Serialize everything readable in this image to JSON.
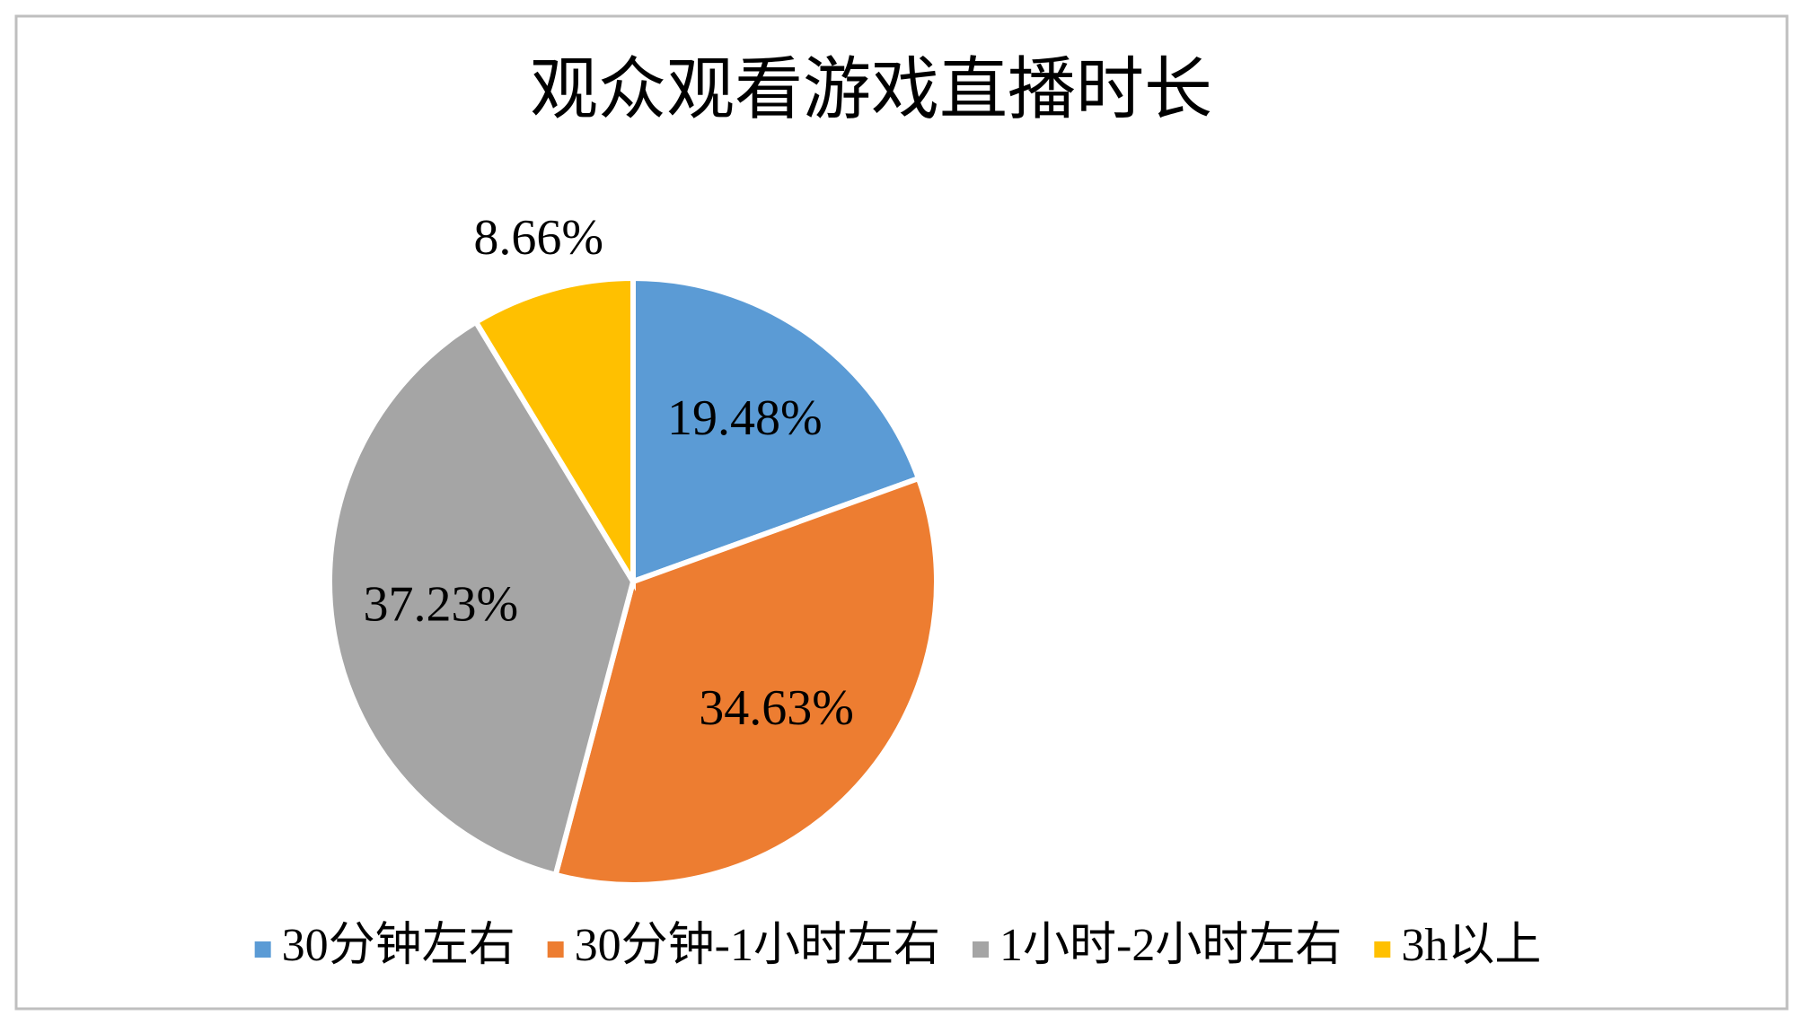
{
  "chart_data": {
    "type": "pie",
    "title": "观众观看游戏直播时长",
    "categories": [
      "30分钟左右",
      "30分钟-1小时左右",
      "1小时-2小时左右",
      "3h以上"
    ],
    "values": [
      19.48,
      34.63,
      37.23,
      8.66
    ],
    "value_labels": [
      "19.48%",
      "34.63%",
      "37.23%",
      "8.66%"
    ],
    "colors": [
      "#5b9bd5",
      "#ed7d31",
      "#a5a5a5",
      "#ffc000"
    ],
    "legend": "bottom"
  }
}
